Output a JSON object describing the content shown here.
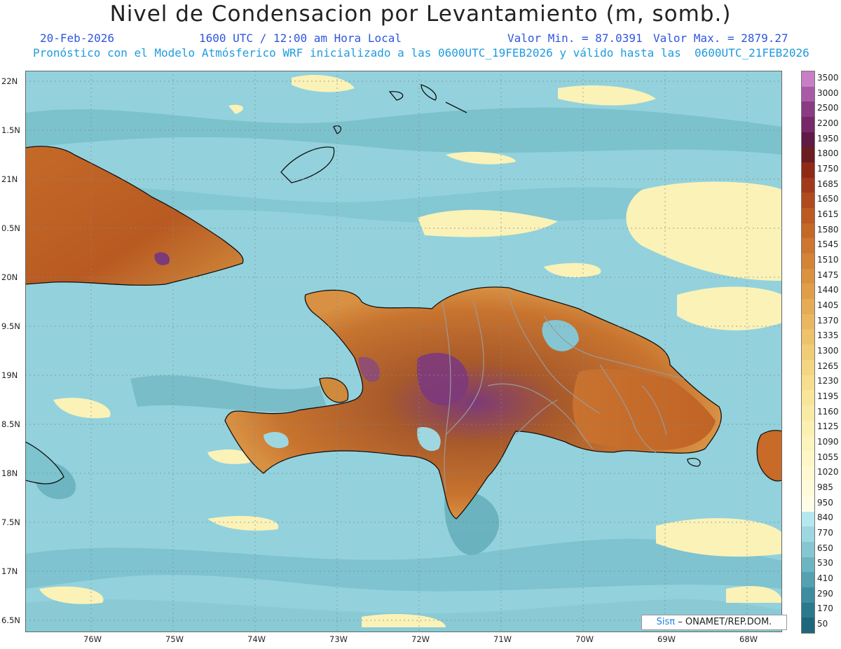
{
  "title": "Nivel de Condensacion por Levantamiento (m, somb.)",
  "header": {
    "date": "20-Feb-2026",
    "time": "1600 UTC / 12:00 am Hora Local",
    "min_label": "Valor Min. = 87.0391",
    "max_label": "Valor Max. = 2879.27",
    "forecast_info": "Pronóstico con el Modelo Atmósferico WRF inicializado a las 0600UTC_19FEB2026 y válido hasta las  0600UTC_21FEB2026"
  },
  "axes": {
    "lat_labels": [
      "22N",
      "1.5N",
      "21N",
      "0.5N",
      "20N",
      "9.5N",
      "19N",
      "8.5N",
      "18N",
      "7.5N",
      "17N",
      "6.5N"
    ],
    "lon_labels": [
      "76W",
      "75W",
      "74W",
      "73W",
      "72W",
      "71W",
      "70W",
      "69W",
      "68W"
    ]
  },
  "legend": {
    "levels": [
      "3500",
      "3000",
      "2500",
      "2200",
      "1950",
      "1800",
      "1750",
      "1685",
      "1650",
      "1615",
      "1580",
      "1545",
      "1510",
      "1475",
      "1440",
      "1405",
      "1370",
      "1335",
      "1300",
      "1265",
      "1230",
      "1195",
      "1160",
      "1125",
      "1090",
      "1055",
      "1020",
      "985",
      "950",
      "840",
      "770",
      "650",
      "530",
      "410",
      "290",
      "170",
      "50"
    ],
    "colors": [
      "#c77fc6",
      "#a95aa6",
      "#8a3b84",
      "#772868",
      "#5f1a45",
      "#6b1d20",
      "#8e2a16",
      "#a2391a",
      "#b04a1f",
      "#bb5a22",
      "#c46828",
      "#cc762f",
      "#d38437",
      "#da9140",
      "#e09e4a",
      "#e5ab55",
      "#e9b760",
      "#edc26b",
      "#f0cc76",
      "#f3d582",
      "#f6de8e",
      "#f8e59a",
      "#f9eba6",
      "#fbf0b2",
      "#fcf4bd",
      "#fdf7c8",
      "#fef9d2",
      "#fefbdc",
      "#fffde6",
      "#b5e8ee",
      "#9fd7e0",
      "#86c6d2",
      "#6db4c2",
      "#55a0b1",
      "#3e8c9f",
      "#2b798e",
      "#1f667c"
    ]
  },
  "credit": {
    "brand": "Sisπ",
    "rest": "– ONAMET/REP.DOM."
  }
}
